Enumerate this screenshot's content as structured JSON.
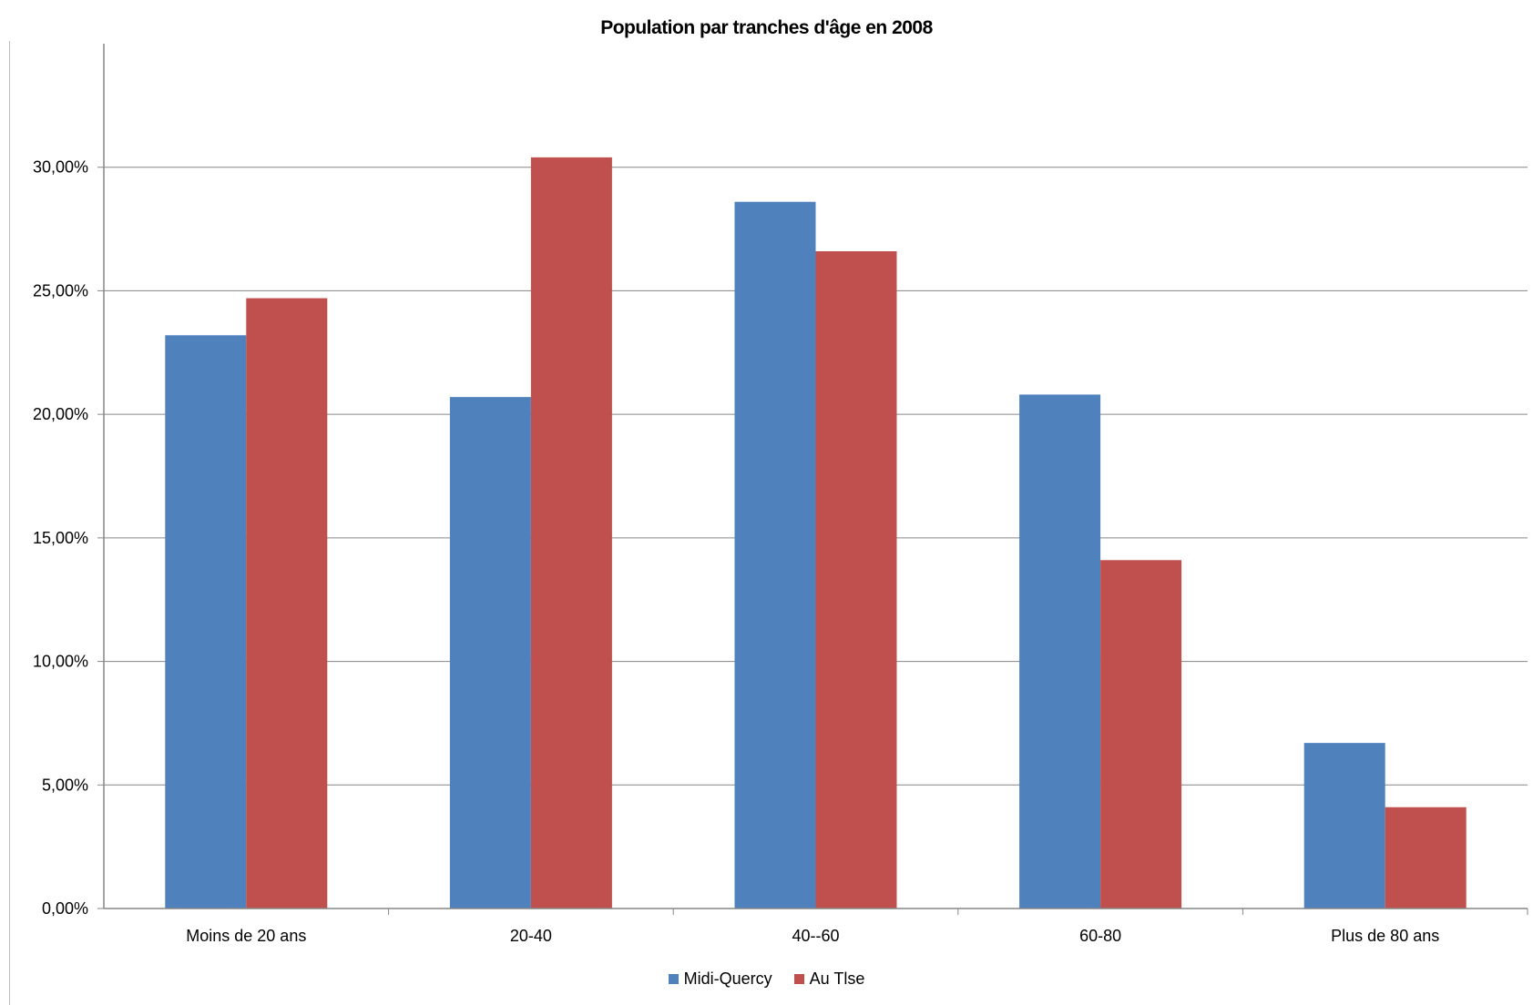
{
  "chart_data": {
    "type": "bar",
    "title": "Population par tranches d'âge en 2008",
    "xlabel": "",
    "ylabel": "",
    "categories": [
      "Moins de 20 ans",
      "20-40",
      "40--60",
      "60-80",
      "Plus de 80 ans"
    ],
    "series": [
      {
        "name": "Midi-Quercy",
        "color": "#4f81bd",
        "values": [
          23.2,
          20.7,
          28.6,
          20.8,
          6.7
        ]
      },
      {
        "name": "Au Tlse",
        "color": "#c0504d",
        "values": [
          24.7,
          30.4,
          26.6,
          14.1,
          4.1
        ]
      }
    ],
    "ylim": [
      0,
      35
    ],
    "yticks": [
      0,
      5,
      10,
      15,
      20,
      25,
      30
    ],
    "ytick_labels": [
      "0,00%",
      "5,00%",
      "10,00%",
      "15,00%",
      "20,00%",
      "25,00%",
      "30,00%"
    ],
    "grid": true,
    "legend_position": "bottom"
  }
}
